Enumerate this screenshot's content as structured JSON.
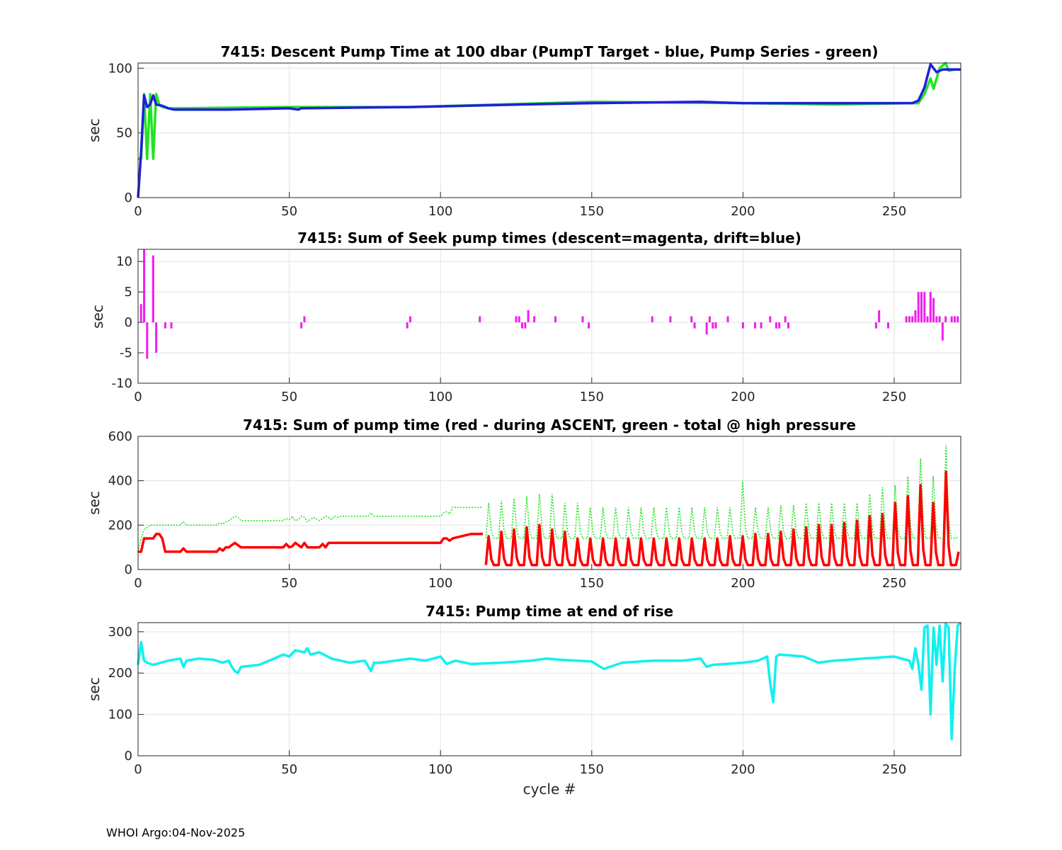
{
  "footer": "WHOI Argo:04-Nov-2025",
  "colors": {
    "blue": "#1f1fdc",
    "green": "#22e422",
    "magenta": "#f01ef0",
    "red": "#ff0000",
    "cyan": "#11f0f0",
    "grid": "#e3e3e3",
    "axis": "#262626"
  },
  "chart_data": [
    {
      "type": "line",
      "title": "7415: Descent Pump Time at 100 dbar (PumpT Target - blue, Pump Series - green)",
      "xlabel": "",
      "ylabel": "sec",
      "xlim": [
        0,
        272
      ],
      "ylim": [
        0,
        104
      ],
      "xticks": [
        0,
        50,
        100,
        150,
        200,
        250
      ],
      "yticks": [
        0,
        50,
        100
      ],
      "series": [
        {
          "name": "Pump Series",
          "color": "green",
          "style": "solid",
          "x": [
            0,
            1,
            2,
            3,
            4,
            5,
            6,
            7,
            8,
            10,
            12,
            50,
            90,
            120,
            150,
            200,
            230,
            255,
            258,
            260,
            262,
            263,
            265,
            267,
            268,
            270,
            272
          ],
          "y": [
            30,
            30,
            80,
            30,
            80,
            30,
            80,
            72,
            70,
            69,
            69,
            70,
            70,
            72,
            74,
            73,
            72,
            73,
            73,
            80,
            92,
            84,
            100,
            104,
            98,
            99,
            99
          ]
        },
        {
          "name": "PumpT Target",
          "color": "blue",
          "style": "solid",
          "x": [
            0,
            1,
            2,
            3,
            4,
            5,
            6,
            8,
            10,
            12,
            30,
            50,
            53,
            54,
            90,
            127,
            150,
            186,
            200,
            256,
            258,
            260,
            262,
            264,
            266,
            268,
            272
          ],
          "y": [
            0,
            35,
            79,
            70,
            72,
            79,
            72,
            71,
            69,
            68,
            68,
            69,
            68,
            69,
            70,
            72,
            73,
            74,
            73,
            73,
            75,
            85,
            103,
            97,
            99,
            99,
            99
          ]
        }
      ]
    },
    {
      "type": "bar",
      "title": "7415: Sum of Seek pump times (descent=magenta, drift=blue)",
      "xlabel": "",
      "ylabel": "sec",
      "xlim": [
        0,
        272
      ],
      "ylim": [
        -10,
        12
      ],
      "xticks": [
        0,
        50,
        100,
        150,
        200,
        250
      ],
      "yticks": [
        -10,
        -5,
        0,
        5,
        10
      ],
      "series": [
        {
          "name": "descent",
          "color": "magenta",
          "x": [
            1,
            2,
            3,
            5,
            6,
            9,
            11,
            54,
            55,
            89,
            90,
            113,
            125,
            126,
            127,
            128,
            129,
            131,
            138,
            147,
            149,
            170,
            176,
            183,
            184,
            188,
            189,
            190,
            191,
            195,
            200,
            204,
            206,
            209,
            211,
            212,
            214,
            215,
            244,
            245,
            248,
            254,
            255,
            256,
            257,
            258,
            259,
            260,
            261,
            262,
            263,
            264,
            265,
            266,
            267,
            269,
            270,
            271
          ],
          "y": [
            3,
            12,
            -6,
            11,
            -5,
            -1,
            -1,
            -1,
            1,
            -1,
            1,
            1,
            1,
            1,
            -1,
            -1,
            2,
            1,
            1,
            1,
            -1,
            1,
            1,
            1,
            -1,
            -2,
            1,
            -1,
            -1,
            1,
            -1,
            -1,
            -1,
            1,
            -1,
            -1,
            1,
            -1,
            -1,
            2,
            -1,
            1,
            1,
            1,
            2,
            5,
            5,
            5,
            1,
            5,
            4,
            1,
            1,
            -3,
            1,
            1,
            1,
            1
          ]
        }
      ]
    },
    {
      "type": "line",
      "title": "7415: Sum of pump time (red - during ASCENT, green - total @ high pressure",
      "xlabel": "",
      "ylabel": "sec",
      "xlim": [
        0,
        272
      ],
      "ylim": [
        0,
        600
      ],
      "xticks": [
        0,
        50,
        100,
        150,
        200,
        250
      ],
      "yticks": [
        0,
        200,
        400,
        600
      ],
      "series": [
        {
          "name": "total @ high pressure",
          "color": "green",
          "style": "dotted",
          "x": [
            0,
            1,
            2,
            3,
            4,
            5,
            6,
            10,
            14,
            15,
            16,
            26,
            27,
            28,
            29,
            30,
            31,
            32,
            33,
            34,
            40,
            48,
            49,
            50,
            51,
            52,
            53,
            54,
            55,
            56,
            58,
            60,
            61,
            62,
            63,
            64,
            65,
            66,
            67,
            76,
            77,
            78,
            100,
            101,
            102,
            103,
            104,
            110,
            113,
            114
          ],
          "y": [
            80,
            140,
            180,
            190,
            200,
            200,
            200,
            200,
            200,
            215,
            200,
            200,
            210,
            205,
            215,
            220,
            230,
            240,
            235,
            220,
            220,
            220,
            230,
            225,
            240,
            220,
            225,
            240,
            235,
            215,
            235,
            220,
            230,
            240,
            235,
            225,
            240,
            235,
            240,
            240,
            255,
            240,
            240,
            255,
            260,
            250,
            280,
            280,
            280,
            280
          ]
        },
        {
          "name": "during ASCENT",
          "color": "red",
          "style": "solid",
          "x": [
            0,
            1,
            2,
            5,
            6,
            7,
            8,
            9,
            10,
            14,
            15,
            16,
            26,
            27,
            28,
            29,
            30,
            31,
            32,
            33,
            34,
            46,
            48,
            49,
            50,
            51,
            52,
            53,
            54,
            55,
            56,
            58,
            60,
            61,
            62,
            63,
            64,
            66,
            67,
            76,
            77,
            100,
            101,
            102,
            103,
            104,
            110,
            111,
            112,
            113,
            114
          ],
          "y": [
            80,
            80,
            140,
            140,
            160,
            160,
            140,
            80,
            80,
            80,
            95,
            80,
            80,
            95,
            85,
            100,
            100,
            110,
            120,
            110,
            100,
            100,
            100,
            115,
            100,
            105,
            120,
            110,
            100,
            120,
            100,
            100,
            100,
            115,
            100,
            120,
            120,
            120,
            120,
            120,
            120,
            120,
            140,
            140,
            130,
            140,
            160,
            160,
            160,
            160,
            160
          ]
        }
      ],
      "cycles": {
        "start": 115,
        "end": 272,
        "period": 4.2,
        "red_peaks": [
          150,
          170,
          180,
          190,
          200,
          180,
          170,
          140,
          140,
          140,
          140,
          140,
          140,
          140,
          140,
          140,
          140,
          140,
          140,
          150,
          150,
          160,
          160,
          170,
          180,
          190,
          200,
          200,
          210,
          220,
          240,
          250,
          300,
          330,
          380,
          300,
          440,
          80
        ],
        "red_base": 20,
        "green_peaks": [
          300,
          310,
          320,
          330,
          340,
          340,
          300,
          300,
          280,
          280,
          280,
          280,
          280,
          280,
          280,
          280,
          280,
          280,
          280,
          280,
          400,
          280,
          280,
          290,
          290,
          300,
          300,
          300,
          300,
          300,
          340,
          370,
          380,
          420,
          500,
          420,
          560,
          150
        ],
        "green_base": 140
      }
    },
    {
      "type": "line",
      "title": "7415: Pump time at end of rise",
      "xlabel": "cycle #",
      "ylabel": "sec",
      "xlim": [
        0,
        272
      ],
      "ylim": [
        0,
        322
      ],
      "xticks": [
        0,
        50,
        100,
        150,
        200,
        250
      ],
      "yticks": [
        0,
        100,
        200,
        300
      ],
      "series": [
        {
          "name": "pump time at end of rise",
          "color": "cyan",
          "style": "solid",
          "x": [
            0,
            1,
            2,
            3,
            5,
            6,
            10,
            14,
            15,
            16,
            20,
            25,
            28,
            30,
            31,
            32,
            33,
            34,
            40,
            45,
            48,
            50,
            52,
            55,
            56,
            57,
            60,
            64,
            70,
            75,
            77,
            78,
            80,
            90,
            95,
            100,
            102,
            105,
            110,
            120,
            130,
            135,
            140,
            150,
            154,
            156,
            160,
            170,
            180,
            186,
            188,
            190,
            200,
            205,
            208,
            209,
            210,
            211,
            212,
            220,
            225,
            230,
            240,
            250,
            255,
            256,
            257,
            258,
            259,
            260,
            261,
            262,
            263,
            264,
            265,
            266,
            267,
            268,
            269,
            270,
            271,
            272
          ],
          "y": [
            220,
            275,
            230,
            225,
            220,
            222,
            230,
            235,
            215,
            230,
            235,
            232,
            225,
            230,
            215,
            205,
            200,
            215,
            220,
            235,
            245,
            240,
            255,
            250,
            260,
            245,
            250,
            235,
            225,
            230,
            205,
            225,
            225,
            235,
            230,
            240,
            222,
            230,
            222,
            225,
            230,
            235,
            232,
            228,
            210,
            215,
            225,
            230,
            230,
            235,
            215,
            220,
            225,
            230,
            240,
            175,
            130,
            240,
            245,
            240,
            225,
            230,
            235,
            240,
            230,
            210,
            260,
            220,
            160,
            310,
            315,
            100,
            310,
            220,
            315,
            180,
            320,
            310,
            40,
            210,
            315,
            322
          ]
        }
      ]
    }
  ]
}
